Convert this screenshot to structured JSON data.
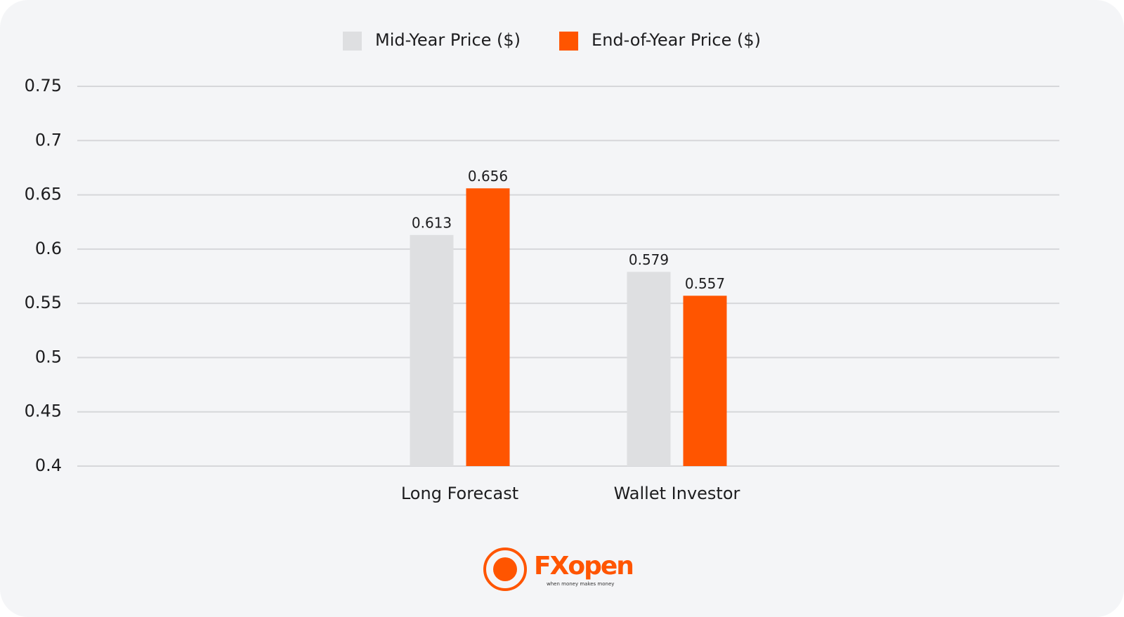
{
  "chart_data": {
    "type": "bar",
    "categories": [
      "Long Forecast",
      "Wallet Investor"
    ],
    "series": [
      {
        "name": "Mid-Year Price ($)",
        "color": "#dedfe1",
        "values": [
          0.613,
          0.579
        ]
      },
      {
        "name": "End-of-Year Price ($)",
        "color": "#ff5500",
        "values": [
          0.656,
          0.557
        ]
      }
    ],
    "ylim": [
      0.4,
      0.75
    ],
    "yticks": [
      0.75,
      0.7,
      0.65,
      0.6,
      0.55,
      0.5,
      0.45,
      0.4
    ],
    "grid": true,
    "legend": "top"
  },
  "logo": {
    "text": "FXopen",
    "tagline": "when money makes money"
  }
}
